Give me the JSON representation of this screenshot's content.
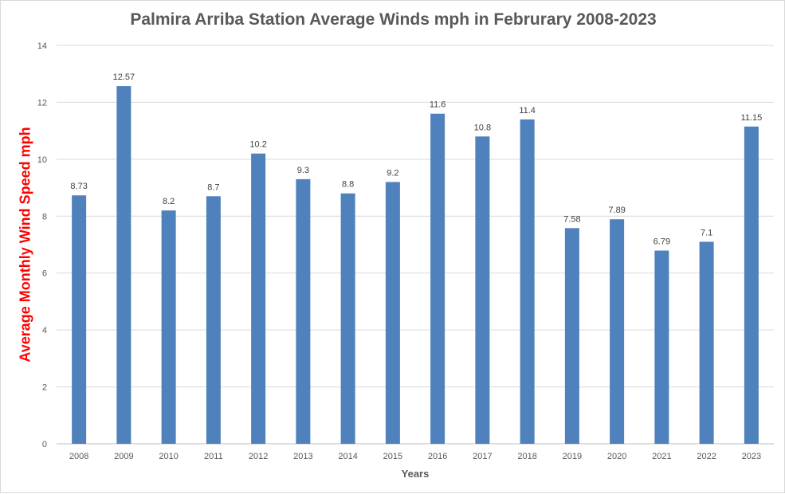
{
  "chart_data": {
    "type": "bar",
    "title": "Palmira Arriba Station Average Winds mph in Februrary 2008-2023",
    "xlabel": "Years",
    "ylabel": "Average Monthly Wind Speed mph",
    "categories": [
      "2008",
      "2009",
      "2010",
      "2011",
      "2012",
      "2013",
      "2014",
      "2015",
      "2016",
      "2017",
      "2018",
      "2019",
      "2020",
      "2021",
      "2022",
      "2023"
    ],
    "values": [
      8.73,
      12.57,
      8.2,
      8.7,
      10.2,
      9.3,
      8.8,
      9.2,
      11.6,
      10.8,
      11.4,
      7.58,
      7.89,
      6.79,
      7.1,
      11.15
    ],
    "data_labels": [
      "8.73",
      "12.57",
      "8.2",
      "8.7",
      "10.2",
      "9.3",
      "8.8",
      "9.2",
      "11.6",
      "10.8",
      "11.4",
      "7.58",
      "7.89",
      "6.79",
      "7.1",
      "11.15"
    ],
    "y_ticks": [
      0,
      2,
      4,
      6,
      8,
      10,
      12,
      14
    ],
    "ylim": [
      0,
      14
    ],
    "grid": true,
    "legend": "none",
    "colors": {
      "bar": "#4f81bd",
      "gridline": "#d9d9d9",
      "ylabel": "#ff0000",
      "text": "#595959"
    }
  }
}
